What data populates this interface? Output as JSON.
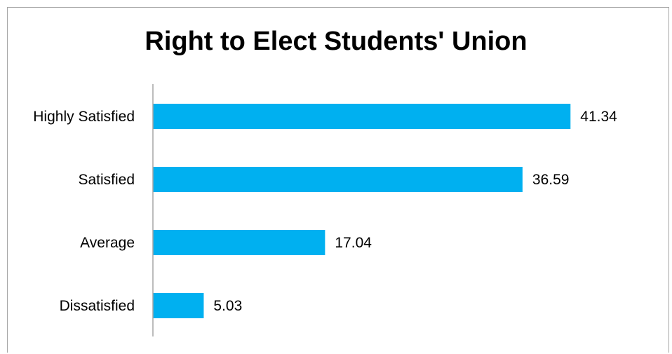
{
  "chart_data": {
    "type": "bar",
    "orientation": "horizontal",
    "title": "Right to Elect Students' Union",
    "categories": [
      "Highly Satisfied",
      "Satisfied",
      "Average",
      "Dissatisfied"
    ],
    "values": [
      41.34,
      36.59,
      17.04,
      5.03
    ],
    "value_labels": [
      "41.34",
      "36.59",
      "17.04",
      "5.03"
    ],
    "xlim": [
      0,
      45
    ],
    "grid": false,
    "legend": "none",
    "bar_color": "#00b0f0",
    "axis_color": "#a6a6a6"
  }
}
